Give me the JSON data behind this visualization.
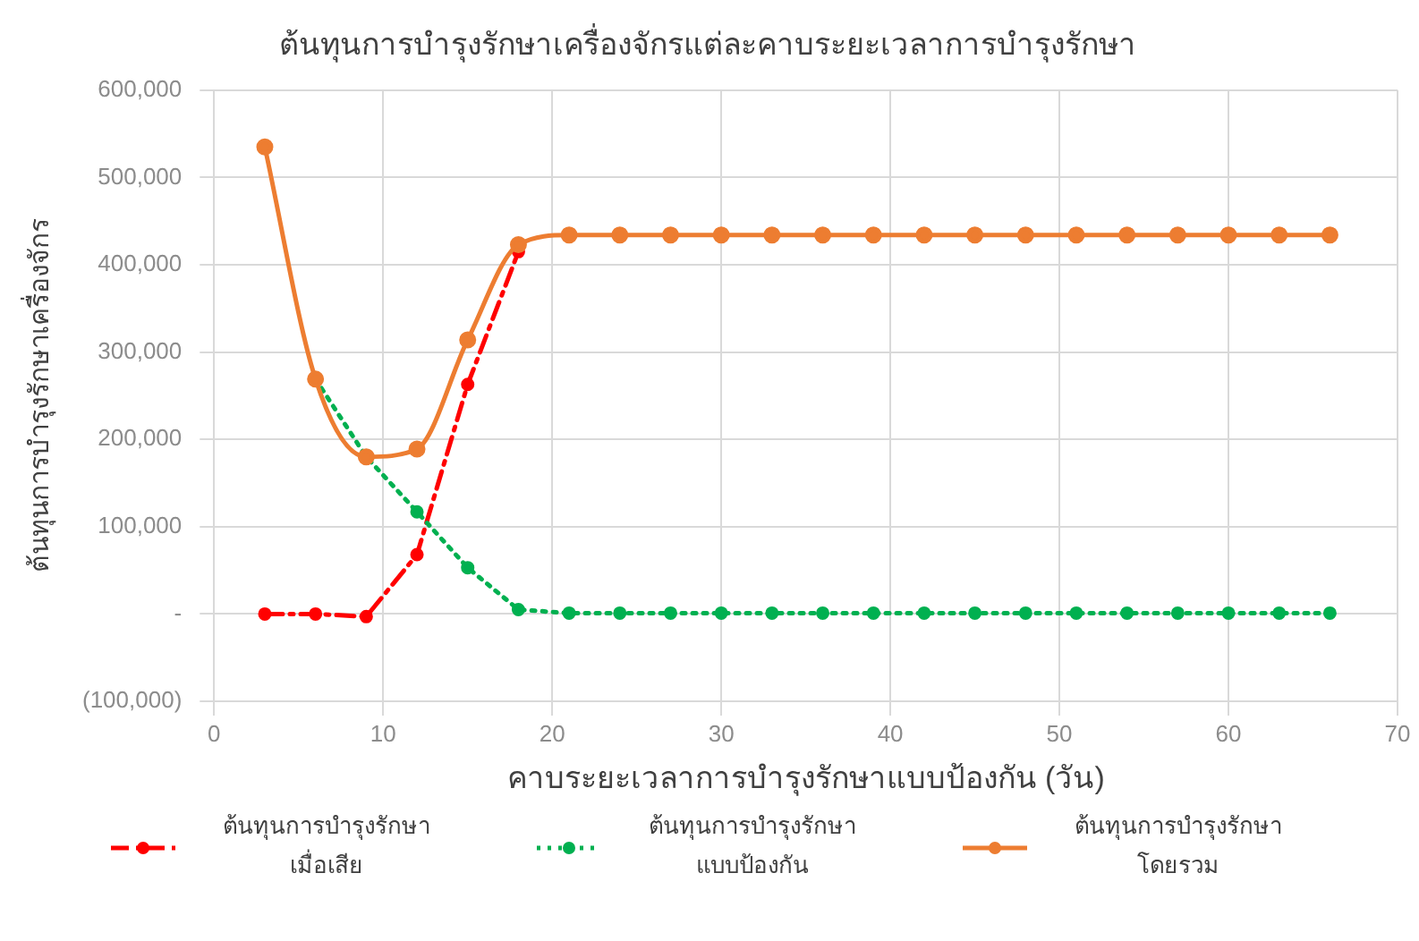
{
  "chart_data": {
    "type": "line",
    "title": "ต้นทุนการบำรุงรักษาเครื่องจักรแต่ละคาบระยะเวลาการบำรุงรักษา",
    "xlabel": "คาบระยะเวลาการบำรุงรักษาแบบป้องกัน (วัน)",
    "ylabel": "ต้นทุนการบำรุงรักษาเครื่องจักร",
    "x": [
      3,
      6,
      9,
      12,
      15,
      18,
      21,
      24,
      27,
      30,
      33,
      36,
      39,
      42,
      45,
      48,
      51,
      54,
      57,
      60,
      63,
      66
    ],
    "series": [
      {
        "name": "ต้นทุนการบำรุงรักษา เมื่อเสีย",
        "color": "#ff0000",
        "line_style": "dashdot",
        "values": [
          0,
          0,
          -3000,
          68000,
          263000,
          415000,
          null,
          null,
          null,
          null,
          null,
          null,
          null,
          null,
          null,
          null,
          null,
          null,
          null,
          null,
          null,
          null
        ]
      },
      {
        "name": "ต้นทุนการบำรุงรักษา แบบป้องกัน",
        "color": "#00b050",
        "line_style": "dotted",
        "values": [
          null,
          269000,
          180000,
          117000,
          53000,
          5000,
          1000,
          1000,
          1000,
          1000,
          1000,
          1000,
          1000,
          1000,
          1000,
          1000,
          1000,
          1000,
          1000,
          1000,
          1000,
          1000
        ]
      },
      {
        "name": "ต้นทุนการบำรุงรักษา โดยรวม",
        "color": "#ed7d31",
        "line_style": "solid",
        "values": [
          535000,
          269000,
          180000,
          189000,
          314000,
          423000,
          434000,
          434000,
          434000,
          434000,
          434000,
          434000,
          434000,
          434000,
          434000,
          434000,
          434000,
          434000,
          434000,
          434000,
          434000,
          434000
        ]
      }
    ],
    "xlim": [
      0,
      70
    ],
    "xticks": [
      0,
      10,
      20,
      30,
      40,
      50,
      60,
      70
    ],
    "ylim": [
      -100000,
      600000
    ],
    "yticks": [
      {
        "value": -100000,
        "label": "(100,000)"
      },
      {
        "value": 0,
        "label": "-"
      },
      {
        "value": 100000,
        "label": "100,000"
      },
      {
        "value": 200000,
        "label": "200,000"
      },
      {
        "value": 300000,
        "label": "300,000"
      },
      {
        "value": 400000,
        "label": "400,000"
      },
      {
        "value": 500000,
        "label": "500,000"
      },
      {
        "value": 600000,
        "label": "600,000"
      }
    ],
    "grid": true,
    "legend": "bottom",
    "marker": "circle"
  }
}
